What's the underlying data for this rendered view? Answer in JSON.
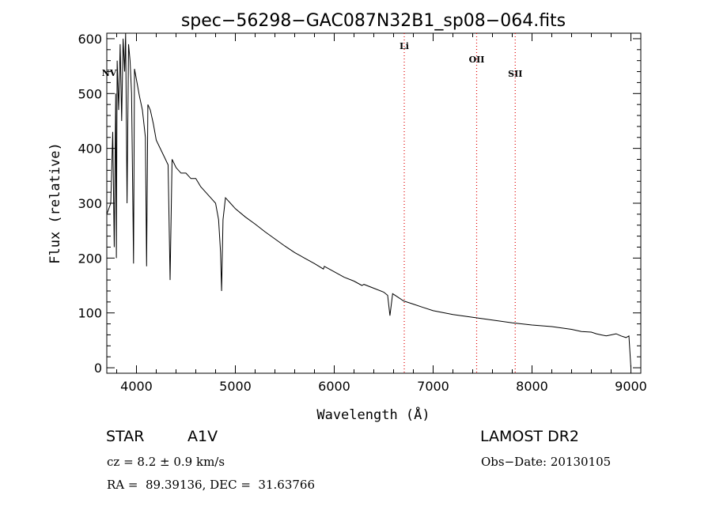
{
  "chart_data": {
    "type": "line",
    "title": "spec−56298−GAC087N32B1_sp08−064.fits",
    "xlabel": "Wavelength (Å)",
    "ylabel": "Flux (relative)",
    "xlim": [
      3700,
      9100
    ],
    "ylim": [
      -10,
      610
    ],
    "xticks": [
      4000,
      5000,
      6000,
      7000,
      8000,
      9000
    ],
    "yticks": [
      0,
      100,
      200,
      300,
      400,
      500,
      600
    ],
    "grid": false,
    "series": [
      {
        "x": [
          3700,
          3740,
          3760,
          3775,
          3790,
          3797,
          3805,
          3820,
          3835,
          3850,
          3865,
          3880,
          3890,
          3905,
          3920,
          3935,
          3950,
          3965,
          3970,
          3980,
          3995,
          4010,
          4030,
          4060,
          4090,
          4102,
          4115,
          4140,
          4170,
          4200,
          4240,
          4280,
          4320,
          4340,
          4360,
          4400,
          4450,
          4500,
          4550,
          4600,
          4650,
          4700,
          4750,
          4800,
          4830,
          4850,
          4861,
          4875,
          4900,
          4950,
          5000,
          5100,
          5200,
          5300,
          5400,
          5500,
          5600,
          5700,
          5800,
          5890,
          5900,
          6000,
          6100,
          6200,
          6280,
          6300,
          6400,
          6500,
          6540,
          6563,
          6590,
          6650,
          6700,
          6800,
          6900,
          7000,
          7200,
          7400,
          7600,
          7800,
          8000,
          8200,
          8400,
          8500,
          8600,
          8650,
          8700,
          8750,
          8800,
          8850,
          8900,
          8950,
          8980,
          9000
        ],
        "y": [
          280,
          300,
          430,
          220,
          500,
          200,
          560,
          470,
          590,
          450,
          600,
          540,
          620,
          300,
          590,
          560,
          500,
          280,
          190,
          545,
          530,
          515,
          495,
          470,
          420,
          185,
          480,
          470,
          445,
          415,
          400,
          385,
          370,
          160,
          380,
          365,
          355,
          355,
          345,
          345,
          330,
          320,
          310,
          300,
          270,
          210,
          140,
          270,
          310,
          300,
          290,
          275,
          262,
          248,
          235,
          222,
          210,
          200,
          190,
          180,
          185,
          175,
          165,
          158,
          150,
          152,
          145,
          138,
          132,
          95,
          135,
          128,
          122,
          116,
          110,
          104,
          97,
          92,
          87,
          82,
          78,
          75,
          70,
          66,
          65,
          62,
          60,
          58,
          60,
          62,
          58,
          55,
          58,
          0
        ]
      }
    ],
    "lines": [
      {
        "label": "Li",
        "x": 6708
      },
      {
        "label": "OII",
        "x": 7440
      },
      {
        "label": "SII",
        "x": 7830
      }
    ],
    "marker_nv": {
      "label": "NV"
    }
  },
  "info": {
    "object_type": "STAR",
    "spectral_class": "A1V",
    "survey": "LAMOST DR2",
    "cz": "cz = 8.2 ± 0.9 km/s",
    "obs_date": "Obs−Date: 20130105",
    "coords": "RA =  89.39136, DEC =  31.63766"
  }
}
